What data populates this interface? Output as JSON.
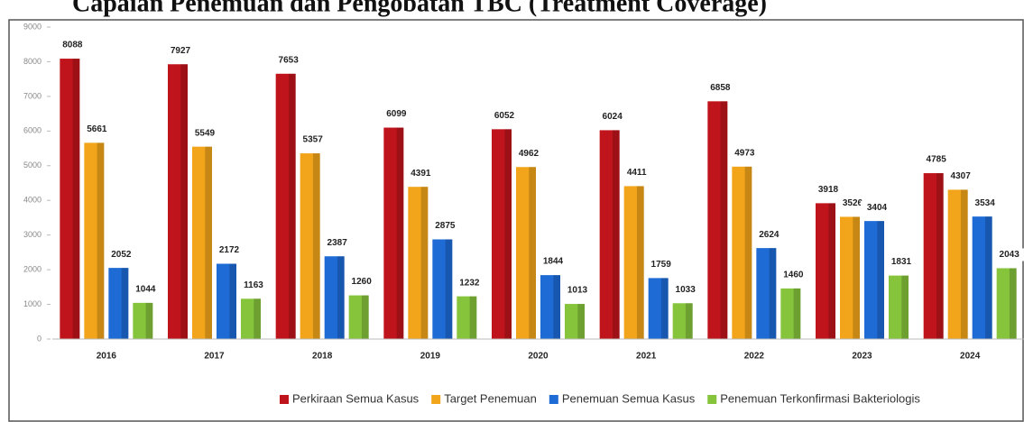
{
  "chart_data": {
    "type": "bar",
    "title": "Capaian Penemuan dan Pengobatan TBC (Treatment Coverage)",
    "categories": [
      "2016",
      "2017",
      "2018",
      "2019",
      "2020",
      "2021",
      "2022",
      "2023",
      "2024"
    ],
    "series": [
      {
        "name": "Perkiraan Semua Kasus",
        "color": "#c0141c",
        "values": [
          8088,
          7927,
          7653,
          6099,
          6052,
          6024,
          6858,
          3918,
          4785
        ]
      },
      {
        "name": "Target Penemuan",
        "color": "#f2a51a",
        "values": [
          5661,
          5549,
          5357,
          4391,
          4962,
          4411,
          4973,
          3526,
          4307
        ]
      },
      {
        "name": "Penemuan Semua Kasus",
        "color": "#1e6bd6",
        "values": [
          2052,
          2172,
          2387,
          2875,
          1844,
          1759,
          2624,
          3404,
          3534
        ]
      },
      {
        "name": "Penemuan Terkonfirmasi Bakteriologis",
        "color": "#86c43c",
        "values": [
          1044,
          1163,
          1260,
          1232,
          1013,
          1033,
          1460,
          1831,
          2043
        ]
      }
    ],
    "ylim": [
      0,
      9000
    ],
    "yticks": [
      0,
      1000,
      2000,
      3000,
      4000,
      5000,
      6000,
      7000,
      8000,
      9000
    ],
    "grid": false,
    "legend": "bottom"
  }
}
